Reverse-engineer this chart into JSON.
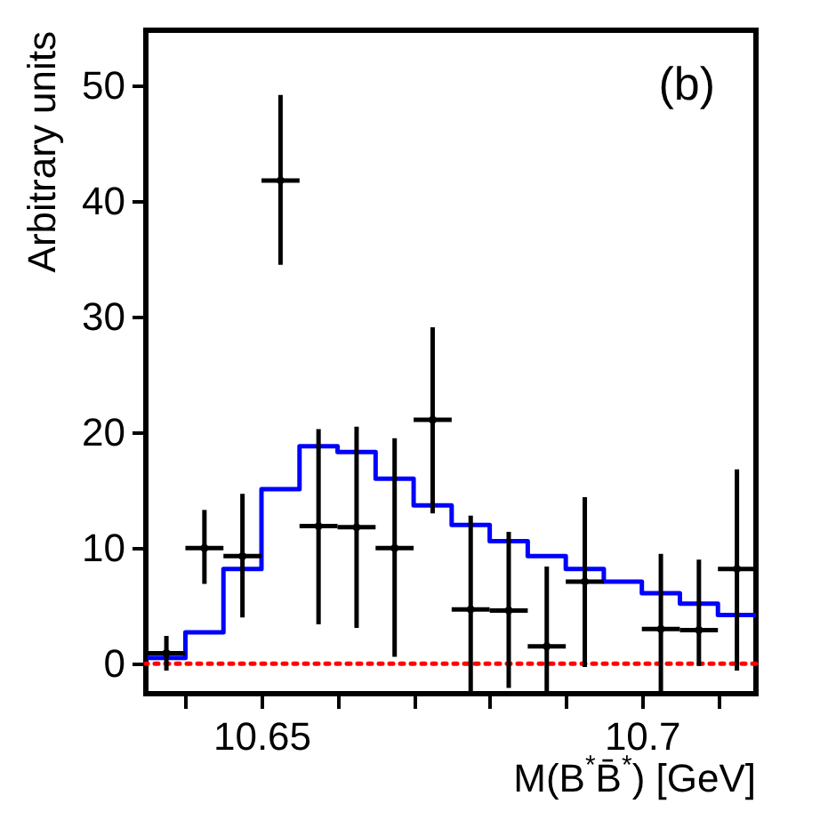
{
  "chart_data": {
    "type": "scatter",
    "xlabel": "M(B$^{*}$B̄$^{*}$) [GeV]",
    "ylabel": "Arbitrary units",
    "annotations": [
      "(b)"
    ],
    "x": [
      10.6375,
      10.6425,
      10.6475,
      10.6525,
      10.6575,
      10.6625,
      10.6675,
      10.6725,
      10.6775,
      10.6825,
      10.6875,
      10.6925,
      10.6975,
      10.7025,
      10.7075,
      10.7125
    ],
    "series": [
      {
        "color": "#000000",
        "values": [
          0.9,
          10.0,
          9.3,
          41.8,
          11.9,
          11.8,
          10.0,
          21.1,
          4.7,
          4.6,
          1.5,
          7.1,
          null,
          3.0,
          2.9,
          8.2
        ],
        "errors": [
          [
            -0.6,
            2.4
          ],
          [
            6.9,
            13.3
          ],
          [
            4.0,
            14.7
          ],
          [
            34.5,
            49.2
          ],
          [
            3.4,
            20.3
          ],
          [
            3.1,
            20.5
          ],
          [
            0.6,
            19.5
          ],
          [
            13.0,
            29.1
          ],
          [
            -2.5,
            12.8
          ],
          [
            -2.1,
            11.4
          ],
          [
            -2.5,
            8.4
          ],
          [
            -0.3,
            14.4
          ],
          null,
          [
            -2.5,
            9.5
          ],
          [
            -0.2,
            9.0
          ],
          [
            -0.6,
            16.8
          ]
        ],
        "xerrors": [
          0.0025,
          0.0025,
          0.0025,
          0.0025,
          0.0025,
          0.0025,
          0.0025,
          0.0025,
          0.0025,
          0.0025,
          0.0025,
          0.0025,
          null,
          0.0025,
          0.0025,
          0.0025
        ]
      },
      {
        "type": "histogram",
        "color": "#0000ff",
        "bins": [
          10.635,
          10.64,
          10.645,
          10.65,
          10.655,
          10.66,
          10.665,
          10.67,
          10.675,
          10.68,
          10.685,
          10.69,
          10.695,
          10.7,
          10.705,
          10.71,
          10.715
        ],
        "values": [
          0.5,
          2.7,
          8.2,
          15.1,
          18.8,
          18.3,
          16.0,
          13.7,
          12.0,
          10.6,
          9.3,
          8.2,
          7.1,
          6.1,
          5.2,
          4.2
        ]
      }
    ],
    "ref_lines": [
      {
        "axis": "y",
        "value": 0,
        "color": "#ff0000",
        "line_style": "dotted"
      }
    ],
    "xlim": [
      10.6348,
      10.715
    ],
    "xticks": [
      {
        "value": 10.64,
        "label": null
      },
      10.65,
      {
        "value": 10.66,
        "label": null
      },
      {
        "value": 10.67,
        "label": null
      },
      {
        "value": 10.68,
        "label": null
      },
      {
        "value": 10.69,
        "label": null
      },
      10.7,
      {
        "value": 10.71,
        "label": null
      }
    ],
    "ylim": [
      -2.6,
      54.8
    ],
    "yticks": [
      0,
      10,
      20,
      30,
      40,
      50
    ],
    "grid": false
  }
}
